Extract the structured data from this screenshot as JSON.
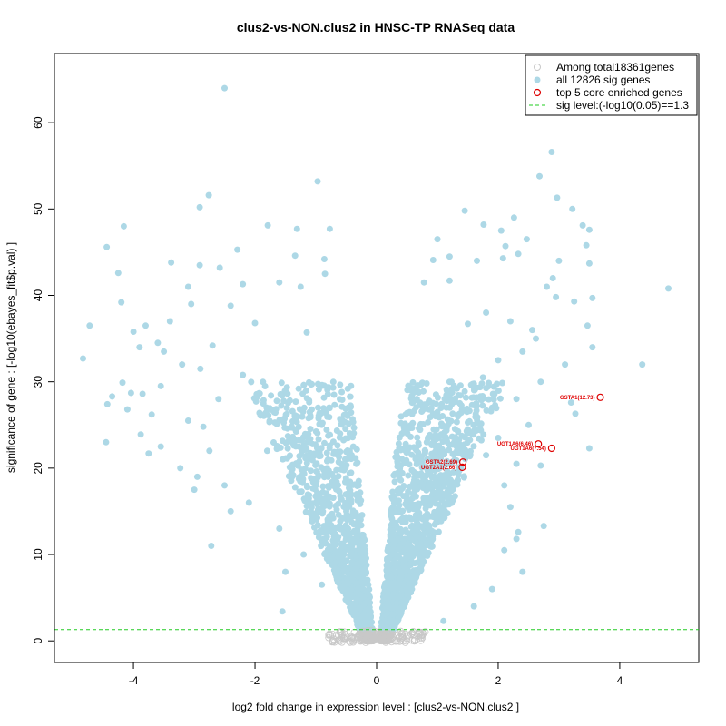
{
  "chart_data": {
    "type": "scatter",
    "title": "clus2-vs-NON.clus2 in HNSC-TP RNASeq data",
    "xlabel": "log2 fold change in expression level : [clus2-vs-NON.clus2 ]",
    "ylabel": "significance of gene : [-log10(ebayes_fit$p.val) ]",
    "xlim": [
      -5.3,
      5.3
    ],
    "ylim": [
      -2.5,
      68
    ],
    "xticks": [
      -4,
      -2,
      0,
      2,
      4
    ],
    "yticks": [
      0,
      10,
      20,
      30,
      40,
      50,
      60
    ],
    "sig_threshold": 1.3,
    "colors": {
      "nonsig": "#c8c8c8",
      "sig": "#add8e6",
      "top": "#dd0000",
      "threshold": "#22cc22"
    },
    "legend": {
      "position": "top-right",
      "entries": [
        {
          "label": "Among total18361genes",
          "kind": "nonsig"
        },
        {
          "label": "all 12826 sig genes",
          "kind": "sig"
        },
        {
          "label": "top 5 core enriched genes",
          "kind": "top"
        },
        {
          "label": "sig level:(-log10(0.05)==1.3",
          "kind": "threshold"
        }
      ]
    },
    "top_genes": [
      {
        "label": "GSTA1(12.73)",
        "x": 3.68,
        "y": 28.2
      },
      {
        "label": "UGT1A6(6.46)",
        "x": 2.66,
        "y": 22.8
      },
      {
        "label": "UGT1A6(7.54)",
        "x": 2.88,
        "y": 22.3
      },
      {
        "label": "GSTA2(2.69)",
        "x": 1.42,
        "y": 20.7
      },
      {
        "label": "UGT2A1(2.66)",
        "x": 1.41,
        "y": 20.1
      }
    ],
    "sig_points": [
      [
        -2.5,
        64.0
      ],
      [
        -0.97,
        53.2
      ],
      [
        -2.76,
        51.6
      ],
      [
        -2.91,
        50.2
      ],
      [
        -4.16,
        48.0
      ],
      [
        -1.79,
        48.1
      ],
      [
        -1.31,
        47.7
      ],
      [
        -0.77,
        47.7
      ],
      [
        -4.44,
        45.6
      ],
      [
        -2.29,
        45.3
      ],
      [
        -1.34,
        44.6
      ],
      [
        -3.38,
        43.8
      ],
      [
        -0.86,
        44.2
      ],
      [
        -2.91,
        43.5
      ],
      [
        -2.58,
        43.2
      ],
      [
        -4.25,
        42.6
      ],
      [
        -1.6,
        41.5
      ],
      [
        -3.1,
        41.0
      ],
      [
        -2.2,
        41.3
      ],
      [
        -1.25,
        41.0
      ],
      [
        -4.2,
        39.2
      ],
      [
        -3.05,
        39.0
      ],
      [
        -2.4,
        38.8
      ],
      [
        -0.85,
        42.5
      ],
      [
        -4.72,
        36.5
      ],
      [
        -3.8,
        36.5
      ],
      [
        -3.4,
        37.0
      ],
      [
        -2.0,
        36.8
      ],
      [
        -1.15,
        35.7
      ],
      [
        -4.0,
        35.8
      ],
      [
        -3.6,
        34.5
      ],
      [
        -2.7,
        34.2
      ],
      [
        -3.9,
        34.0
      ],
      [
        -3.5,
        33.5
      ],
      [
        -4.83,
        32.7
      ],
      [
        -3.2,
        32.0
      ],
      [
        -2.9,
        31.5
      ],
      [
        -2.2,
        30.8
      ],
      [
        -4.18,
        29.9
      ],
      [
        -4.04,
        28.7
      ],
      [
        -4.35,
        28.3
      ],
      [
        -3.55,
        29.5
      ],
      [
        -3.85,
        28.6
      ],
      [
        -2.6,
        28.0
      ],
      [
        -4.43,
        27.4
      ],
      [
        -4.1,
        26.8
      ],
      [
        -3.7,
        26.2
      ],
      [
        -3.1,
        25.5
      ],
      [
        -2.85,
        24.8
      ],
      [
        -3.88,
        23.9
      ],
      [
        -4.45,
        23.0
      ],
      [
        -3.55,
        22.5
      ],
      [
        -2.75,
        22.0
      ],
      [
        -3.75,
        21.7
      ],
      [
        -3.23,
        20.0
      ],
      [
        -2.95,
        19.0
      ],
      [
        -2.5,
        18.0
      ],
      [
        -3.0,
        17.5
      ],
      [
        -2.4,
        15.0
      ],
      [
        -2.72,
        11.0
      ],
      [
        -1.6,
        13.0
      ],
      [
        -1.2,
        10.0
      ],
      [
        -1.5,
        8.0
      ],
      [
        -0.9,
        6.5
      ],
      [
        -1.55,
        3.4
      ],
      [
        -1.0,
        18.0
      ],
      [
        -0.8,
        21.0
      ],
      [
        -1.4,
        19.5
      ],
      [
        -1.8,
        22.0
      ],
      [
        -2.1,
        16.0
      ],
      [
        -0.6,
        24.0
      ],
      [
        -1.1,
        26.5
      ],
      [
        -0.7,
        28.5
      ],
      [
        -0.5,
        15.0
      ],
      [
        -0.95,
        12.0
      ],
      [
        1.45,
        49.8
      ],
      [
        1.76,
        48.2
      ],
      [
        2.05,
        47.5
      ],
      [
        2.26,
        49.0
      ],
      [
        2.47,
        46.5
      ],
      [
        2.12,
        45.7
      ],
      [
        2.33,
        44.8
      ],
      [
        2.08,
        44.3
      ],
      [
        2.68,
        53.8
      ],
      [
        2.88,
        56.6
      ],
      [
        2.97,
        51.3
      ],
      [
        3.0,
        44.0
      ],
      [
        3.39,
        48.1
      ],
      [
        3.22,
        50.0
      ],
      [
        3.5,
        47.6
      ],
      [
        3.45,
        45.8
      ],
      [
        3.5,
        43.7
      ],
      [
        1.2,
        44.5
      ],
      [
        1.65,
        44.0
      ],
      [
        1.0,
        46.5
      ],
      [
        0.93,
        44.1
      ],
      [
        0.78,
        41.5
      ],
      [
        1.2,
        41.7
      ],
      [
        2.8,
        41.0
      ],
      [
        2.9,
        42.0
      ],
      [
        3.55,
        39.7
      ],
      [
        4.8,
        40.8
      ],
      [
        3.25,
        39.3
      ],
      [
        2.95,
        39.8
      ],
      [
        3.47,
        36.5
      ],
      [
        2.2,
        37.0
      ],
      [
        2.56,
        36.0
      ],
      [
        1.8,
        38.0
      ],
      [
        1.5,
        36.7
      ],
      [
        2.62,
        35.0
      ],
      [
        3.1,
        32.0
      ],
      [
        4.37,
        32.0
      ],
      [
        3.55,
        34.0
      ],
      [
        2.4,
        33.5
      ],
      [
        2.0,
        32.5
      ],
      [
        1.75,
        30.5
      ],
      [
        2.7,
        30.0
      ],
      [
        3.2,
        27.6
      ],
      [
        3.27,
        26.3
      ],
      [
        2.3,
        28.0
      ],
      [
        3.5,
        22.3
      ],
      [
        2.5,
        25.0
      ],
      [
        2.0,
        23.5
      ],
      [
        2.3,
        20.5
      ],
      [
        2.7,
        20.3
      ],
      [
        2.1,
        18.0
      ],
      [
        2.2,
        15.5
      ],
      [
        2.75,
        13.3
      ],
      [
        2.33,
        12.6
      ],
      [
        2.3,
        11.8
      ],
      [
        2.1,
        10.5
      ],
      [
        2.4,
        8.0
      ],
      [
        1.9,
        6.0
      ],
      [
        1.6,
        4.0
      ],
      [
        1.1,
        2.3
      ],
      [
        1.2,
        30.0
      ],
      [
        1.0,
        26.5
      ],
      [
        0.8,
        22.0
      ],
      [
        0.6,
        17.0
      ],
      [
        0.55,
        12.0
      ],
      [
        0.45,
        8.0
      ],
      [
        0.35,
        5.0
      ],
      [
        1.5,
        24.5
      ],
      [
        1.8,
        21.5
      ],
      [
        1.9,
        27.0
      ]
    ]
  }
}
